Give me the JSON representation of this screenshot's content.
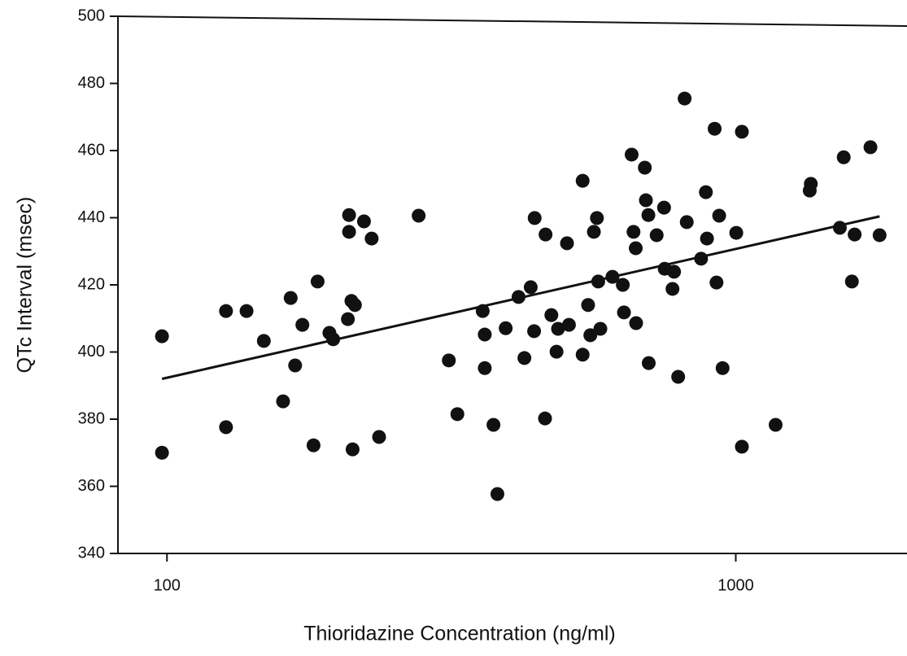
{
  "chart_data": {
    "type": "scatter",
    "xscale": "log",
    "color": "#111111",
    "xlabel": "Thioridazine Concentration (ng/ml)",
    "ylabel": "QTc Interval (msec)",
    "xlim": [
      82,
      2000
    ],
    "ylim": [
      340,
      500
    ],
    "xticks": [
      100,
      1000
    ],
    "yticks": [
      340,
      360,
      380,
      400,
      420,
      440,
      460,
      480,
      500
    ],
    "x": [
      98,
      98,
      127,
      127,
      138,
      148,
      160,
      165,
      168,
      173,
      181,
      184,
      193,
      196,
      208,
      209,
      209,
      211,
      214,
      212,
      222,
      229,
      236,
      277,
      313,
      324,
      359,
      362,
      362,
      375,
      381,
      394,
      415,
      425,
      436,
      443,
      442,
      462,
      463,
      474,
      484,
      487,
      505,
      509,
      538,
      538,
      550,
      555,
      563,
      570,
      573,
      578,
      607,
      633,
      636,
      656,
      661,
      667,
      668,
      692,
      695,
      702,
      703,
      726,
      748,
      750,
      774,
      779,
      792,
      813,
      820,
      869,
      886,
      890,
      918,
      925,
      935,
      948,
      1002,
      1025,
      1025,
      1175,
      1349,
      1355,
      1524,
      1548,
      1600,
      1618,
      1725,
      1790
    ],
    "values": [
      404.7,
      370,
      412.2,
      377.6,
      412.2,
      403.3,
      385.3,
      416.1,
      396,
      408.1,
      372.2,
      421,
      405.7,
      403.8,
      409.8,
      440.8,
      435.8,
      415.2,
      414,
      371,
      438.9,
      433.8,
      374.7,
      440.6,
      397.5,
      381.5,
      412.2,
      405.2,
      395.2,
      378.3,
      357.7,
      407.1,
      416.4,
      398.2,
      419.3,
      439.9,
      406.2,
      380.2,
      435,
      411,
      400.1,
      406.9,
      432.4,
      408.1,
      399.2,
      451,
      414,
      405,
      435.8,
      439.9,
      421,
      406.9,
      422.4,
      420,
      411.8,
      458.8,
      435.8,
      430.9,
      408.6,
      454.9,
      445.2,
      440.8,
      396.7,
      434.8,
      443,
      424.8,
      418.8,
      423.9,
      392.6,
      475.5,
      438.7,
      427.8,
      447.6,
      433.8,
      466.5,
      420.7,
      440.6,
      395.2,
      435.5,
      465.6,
      371.8,
      378.3,
      448.1,
      450.1,
      437,
      458,
      421,
      435,
      461,
      434.8
    ],
    "trendline": {
      "x": [
        98,
        1790
      ],
      "values": [
        392,
        440.4
      ]
    }
  }
}
